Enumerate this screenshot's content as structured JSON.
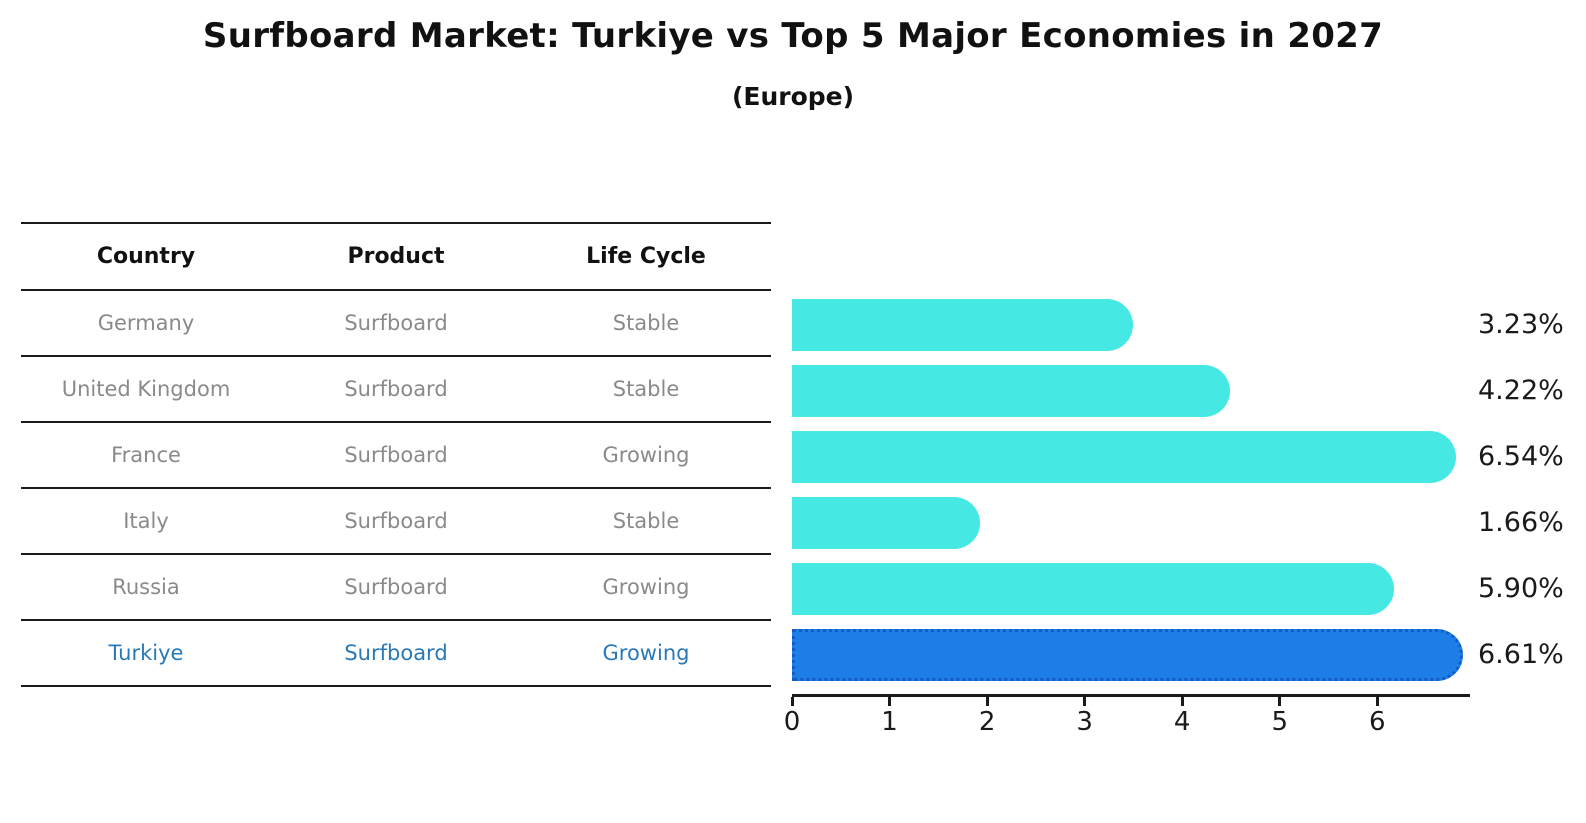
{
  "header": {
    "title": "Surfboard Market: Turkiye vs Top 5 Major Economies in 2027",
    "subtitle": "(Europe)"
  },
  "table": {
    "columns": [
      "Country",
      "Product",
      "Life Cycle"
    ],
    "rows": [
      {
        "country": "Germany",
        "product": "Surfboard",
        "life_cycle": "Stable",
        "highlighted": false
      },
      {
        "country": "United Kingdom",
        "product": "Surfboard",
        "life_cycle": "Stable",
        "highlighted": false
      },
      {
        "country": "France",
        "product": "Surfboard",
        "life_cycle": "Growing",
        "highlighted": false
      },
      {
        "country": "Italy",
        "product": "Surfboard",
        "life_cycle": "Stable",
        "highlighted": false
      },
      {
        "country": "Russia",
        "product": "Surfboard",
        "life_cycle": "Growing",
        "highlighted": false
      },
      {
        "country": "Turkiye",
        "product": "Surfboard",
        "life_cycle": "Growing",
        "highlighted": true
      }
    ]
  },
  "chart_data": {
    "type": "bar",
    "orientation": "horizontal",
    "title": "Surfboard Market: Turkiye vs Top 5 Major Economies in 2027",
    "subtitle": "(Europe)",
    "categories": [
      "Germany",
      "United Kingdom",
      "France",
      "Italy",
      "Russia",
      "Turkiye"
    ],
    "values": [
      3.23,
      4.22,
      6.54,
      1.66,
      5.9,
      6.61
    ],
    "value_labels": [
      "3.23%",
      "4.22%",
      "6.54%",
      "1.66%",
      "5.90%",
      "6.61%"
    ],
    "unit": "percent",
    "x_ticks": [
      0,
      1,
      2,
      3,
      4,
      5,
      6
    ],
    "xlim": [
      0,
      6.93
    ],
    "grid": false,
    "legend": false,
    "bar_color": "#45E8E2",
    "highlight_bar_color": "#1E7EE8",
    "highlight_border_color": "#135CC4",
    "highlight_index": 5,
    "highlight_text_color": "#2979B8"
  }
}
